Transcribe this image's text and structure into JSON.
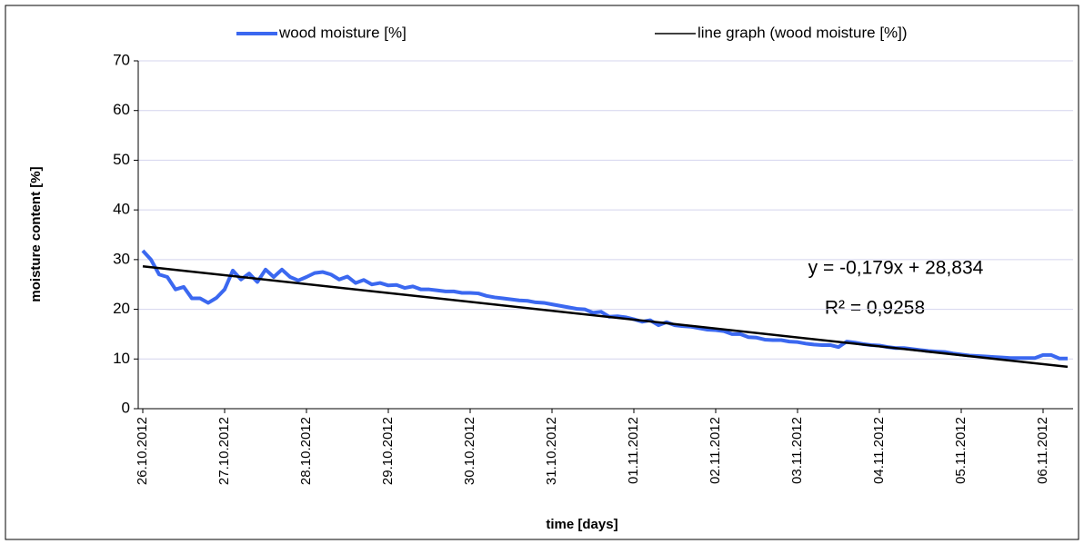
{
  "chart_data": {
    "type": "line",
    "x_label": "time [days]",
    "y_label": "moisture content [%]",
    "categories": [
      "26.10.2012",
      null,
      null,
      null,
      null,
      null,
      null,
      null,
      null,
      null,
      "27.10.2012",
      null,
      null,
      null,
      null,
      null,
      null,
      null,
      null,
      null,
      "28.10.2012",
      null,
      null,
      null,
      null,
      null,
      null,
      null,
      null,
      null,
      "29.10.2012",
      null,
      null,
      null,
      null,
      null,
      null,
      null,
      null,
      null,
      "30.10.2012",
      null,
      null,
      null,
      null,
      null,
      null,
      null,
      null,
      null,
      "31.10.2012",
      null,
      null,
      null,
      null,
      null,
      null,
      null,
      null,
      null,
      "01.11.2012",
      null,
      null,
      null,
      null,
      null,
      null,
      null,
      null,
      null,
      "02.11.2012",
      null,
      null,
      null,
      null,
      null,
      null,
      null,
      null,
      null,
      "03.11.2012",
      null,
      null,
      null,
      null,
      null,
      null,
      null,
      null,
      null,
      "04.11.2012",
      null,
      null,
      null,
      null,
      null,
      null,
      null,
      null,
      null,
      "05.11.2012",
      null,
      null,
      null,
      null,
      null,
      null,
      null,
      null,
      null,
      "06.11.2012",
      null,
      null,
      null
    ],
    "series": [
      {
        "name": "wood moisture [%]",
        "color": "#3b68f0",
        "values": [
          31.8,
          30,
          27,
          26.5,
          24,
          24.5,
          22.2,
          22.2,
          21.3,
          22.3,
          24,
          27.8,
          26,
          27.2,
          25.5,
          28,
          26.5,
          28,
          26.5,
          25.8,
          26.5,
          27.3,
          27.5,
          27,
          26,
          26.6,
          25.3,
          25.9,
          25,
          25.3,
          24.8,
          24.9,
          24.3,
          24.6,
          24,
          24,
          23.8,
          23.6,
          23.6,
          23.3,
          23.3,
          23.2,
          22.7,
          22.4,
          22.2,
          22,
          21.8,
          21.7,
          21.4,
          21.3,
          21,
          20.7,
          20.4,
          20.1,
          20,
          19.3,
          19.5,
          18.5,
          18.6,
          18.4,
          18,
          17.5,
          17.8,
          16.8,
          17.4,
          16.8,
          16.6,
          16.5,
          16.2,
          15.9,
          15.8,
          15.6,
          15,
          15,
          14.4,
          14.3,
          13.9,
          13.8,
          13.8,
          13.5,
          13.4,
          13.1,
          12.9,
          12.8,
          12.8,
          12.4,
          13.5,
          13.3,
          13,
          12.8,
          12.7,
          12.4,
          12.2,
          12.2,
          12,
          11.8,
          11.6,
          11.5,
          11.4,
          11.1,
          10.9,
          10.7,
          10.6,
          10.5,
          10.4,
          10.3,
          10.2,
          10.2,
          10.2,
          10.2,
          10.8,
          10.8,
          10.1,
          10.1
        ]
      },
      {
        "name": "line graph (wood moisture [%])",
        "color": "#000000",
        "x": [
          1,
          114
        ],
        "values": [
          28.655,
          8.428
        ]
      }
    ],
    "annotations": [
      "y = -0,179x + 28,834",
      "R² = 0,9258"
    ],
    "ylim": [
      0,
      70
    ],
    "yticks": [
      0,
      10,
      20,
      30,
      40,
      50,
      60,
      70
    ],
    "grid": true
  }
}
